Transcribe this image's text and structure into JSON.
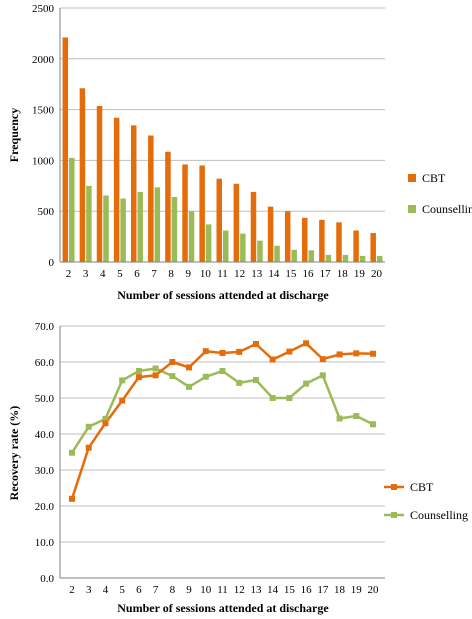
{
  "colors": {
    "cbt": "#E46C0A",
    "counselling": "#9BBB59",
    "grid": "#BFBFBF",
    "axis": "#808080"
  },
  "chart_data": [
    {
      "type": "bar",
      "categories": [
        "2",
        "3",
        "4",
        "5",
        "6",
        "7",
        "8",
        "9",
        "10",
        "11",
        "12",
        "13",
        "14",
        "15",
        "16",
        "17",
        "18",
        "19",
        "20"
      ],
      "series": [
        {
          "name": "CBT",
          "values": [
            2210,
            1710,
            1535,
            1420,
            1345,
            1245,
            1085,
            960,
            950,
            820,
            770,
            690,
            545,
            500,
            435,
            415,
            390,
            310,
            285
          ]
        },
        {
          "name": "Counselling",
          "values": [
            1025,
            750,
            655,
            625,
            690,
            735,
            640,
            500,
            370,
            310,
            280,
            210,
            160,
            120,
            115,
            70,
            70,
            60,
            60
          ]
        }
      ],
      "xlabel": "Number of sessions attended at discharge",
      "ylabel": "Frequency",
      "ylim": [
        0,
        2500
      ],
      "yticks": [
        "0",
        "500",
        "1000",
        "1500",
        "2000",
        "2500"
      ],
      "grid": true,
      "legend": "right"
    },
    {
      "type": "line",
      "categories": [
        "2",
        "3",
        "4",
        "5",
        "6",
        "7",
        "8",
        "9",
        "10",
        "11",
        "12",
        "13",
        "14",
        "15",
        "16",
        "17",
        "18",
        "19",
        "20"
      ],
      "series": [
        {
          "name": "CBT",
          "values": [
            22.0,
            36.2,
            43.0,
            49.3,
            55.8,
            56.3,
            60.0,
            58.5,
            63.0,
            62.5,
            62.8,
            65.0,
            60.7,
            62.9,
            65.2,
            60.8,
            62.1,
            62.4,
            62.3
          ]
        },
        {
          "name": "Counselling",
          "values": [
            34.8,
            42.0,
            44.2,
            54.9,
            57.5,
            58.2,
            56.1,
            53.1,
            55.9,
            57.5,
            54.2,
            55.0,
            50.0,
            50.0,
            54.0,
            56.3,
            44.3,
            45.0,
            42.7
          ]
        }
      ],
      "xlabel": "Number of sessions attended at discharge",
      "ylabel": "Recovery rate (%)",
      "ylim": [
        0,
        70
      ],
      "yticks": [
        "0.0",
        "10.0",
        "20.0",
        "30.0",
        "40.0",
        "50.0",
        "60.0",
        "70.0"
      ],
      "grid": true,
      "legend": "right"
    }
  ]
}
